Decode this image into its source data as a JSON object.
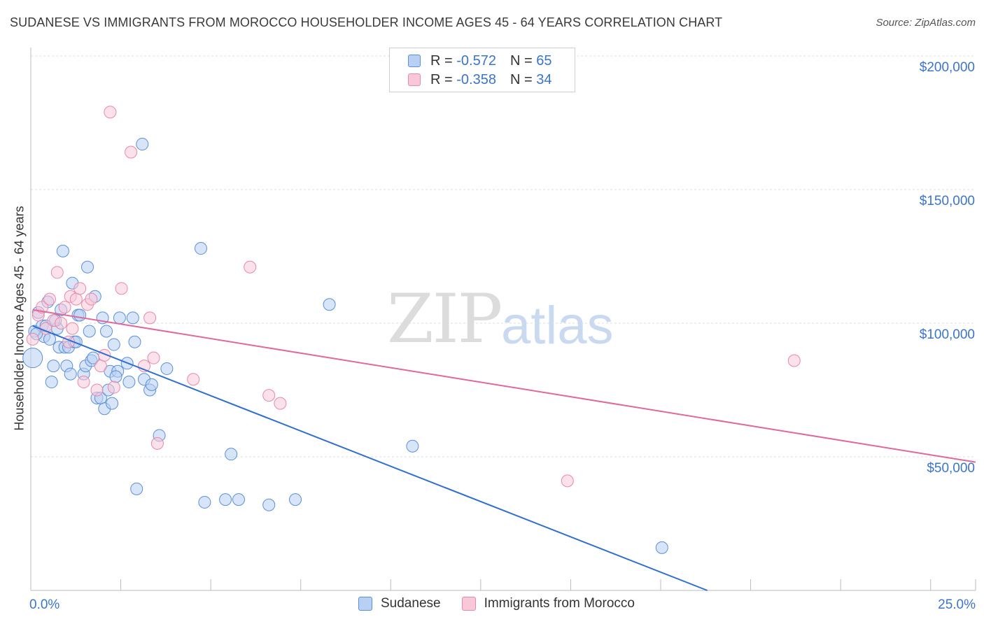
{
  "title": "SUDANESE VS IMMIGRANTS FROM MOROCCO HOUSEHOLDER INCOME AGES 45 - 64 YEARS CORRELATION CHART",
  "source": "Source: ZipAtlas.com",
  "watermark": {
    "zip": "ZIP",
    "atlas": "atlas"
  },
  "legend": {
    "r_label": "R =",
    "n_label": "N =",
    "series": [
      {
        "r": "-0.572",
        "n": "65"
      },
      {
        "r": "-0.358",
        "n": "34"
      }
    ]
  },
  "bottom_legend": [
    "Sudanese",
    "Immigrants from Morocco"
  ],
  "colors": {
    "blue_fill": "#b8d0f4",
    "blue_stroke": "#5b8fd6",
    "blue_line": "#2e6fd0",
    "pink_fill": "#f8c8d8",
    "pink_stroke": "#e889a8",
    "pink_line": "#e0689a",
    "axis_text": "#3b74c9",
    "grid": "#dddddd"
  },
  "chart_data": {
    "type": "scatter",
    "title": "SUDANESE VS IMMIGRANTS FROM MOROCCO HOUSEHOLDER INCOME AGES 45 - 64 YEARS CORRELATION CHART",
    "xlabel": "",
    "ylabel": "Householder Income Ages 45 - 64 years",
    "xlim": [
      0,
      25
    ],
    "ylim": [
      0,
      200000
    ],
    "x_tick_labels": [
      "0.0%",
      "25.0%"
    ],
    "y_ticks": [
      50000,
      100000,
      150000,
      200000
    ],
    "y_tick_labels": [
      "$50,000",
      "$100,000",
      "$150,000",
      "$200,000"
    ],
    "series": [
      {
        "name": "Sudanese",
        "r": -0.572,
        "n": 65,
        "trend": {
          "x": [
            0.05,
            17.9
          ],
          "y": [
            99000,
            0
          ]
        },
        "points": [
          [
            0.05,
            87000
          ],
          [
            0.1,
            97000
          ],
          [
            0.2,
            104000
          ],
          [
            0.3,
            99000
          ],
          [
            0.35,
            95000
          ],
          [
            0.45,
            108000
          ],
          [
            0.5,
            94000
          ],
          [
            0.55,
            78000
          ],
          [
            0.6,
            84000
          ],
          [
            0.7,
            98000
          ],
          [
            0.75,
            91000
          ],
          [
            0.8,
            105000
          ],
          [
            0.85,
            127000
          ],
          [
            0.9,
            91000
          ],
          [
            0.95,
            84000
          ],
          [
            1.0,
            91000
          ],
          [
            1.05,
            81000
          ],
          [
            1.1,
            115000
          ],
          [
            1.15,
            93000
          ],
          [
            1.25,
            103000
          ],
          [
            1.3,
            103000
          ],
          [
            1.4,
            81000
          ],
          [
            1.45,
            84000
          ],
          [
            1.5,
            121000
          ],
          [
            1.55,
            97000
          ],
          [
            1.6,
            86000
          ],
          [
            1.65,
            87000
          ],
          [
            1.7,
            110000
          ],
          [
            1.75,
            72000
          ],
          [
            1.85,
            72000
          ],
          [
            1.9,
            102000
          ],
          [
            1.95,
            68000
          ],
          [
            2.0,
            97000
          ],
          [
            2.05,
            75000
          ],
          [
            2.1,
            82000
          ],
          [
            2.15,
            70000
          ],
          [
            2.2,
            92000
          ],
          [
            2.3,
            82000
          ],
          [
            2.35,
            102000
          ],
          [
            2.55,
            85000
          ],
          [
            2.6,
            78000
          ],
          [
            2.7,
            102000
          ],
          [
            2.75,
            93000
          ],
          [
            2.8,
            38000
          ],
          [
            2.95,
            167000
          ],
          [
            3.0,
            79000
          ],
          [
            3.15,
            75000
          ],
          [
            3.2,
            77000
          ],
          [
            3.4,
            58000
          ],
          [
            3.6,
            83000
          ],
          [
            4.6,
            33000
          ],
          [
            4.5,
            128000
          ],
          [
            5.15,
            34000
          ],
          [
            5.3,
            51000
          ],
          [
            5.5,
            34000
          ],
          [
            6.3,
            32000
          ],
          [
            7.0,
            34000
          ],
          [
            7.9,
            107000
          ],
          [
            10.1,
            54000
          ],
          [
            0.15,
            96000
          ],
          [
            0.4,
            99000
          ],
          [
            1.2,
            93000
          ],
          [
            2.25,
            80000
          ],
          [
            16.7,
            16000
          ],
          [
            0.65,
            101000
          ]
        ]
      },
      {
        "name": "Immigrants from Morocco",
        "r": -0.358,
        "n": 34,
        "trend": {
          "x": [
            0.05,
            25.0
          ],
          "y": [
            105000,
            48000
          ]
        },
        "points": [
          [
            0.05,
            94000
          ],
          [
            0.2,
            103000
          ],
          [
            0.3,
            106000
          ],
          [
            0.4,
            98000
          ],
          [
            0.5,
            109000
          ],
          [
            0.6,
            101000
          ],
          [
            0.7,
            119000
          ],
          [
            0.8,
            100000
          ],
          [
            0.9,
            106000
          ],
          [
            1.0,
            93000
          ],
          [
            1.05,
            110000
          ],
          [
            1.1,
            98000
          ],
          [
            1.2,
            109000
          ],
          [
            1.3,
            113000
          ],
          [
            1.4,
            78000
          ],
          [
            1.5,
            107000
          ],
          [
            1.6,
            109000
          ],
          [
            1.75,
            75000
          ],
          [
            1.85,
            84000
          ],
          [
            1.95,
            88000
          ],
          [
            2.1,
            179000
          ],
          [
            2.2,
            76000
          ],
          [
            2.4,
            113000
          ],
          [
            2.65,
            164000
          ],
          [
            3.0,
            84000
          ],
          [
            3.15,
            102000
          ],
          [
            3.25,
            87000
          ],
          [
            3.35,
            55000
          ],
          [
            4.3,
            79000
          ],
          [
            5.8,
            121000
          ],
          [
            6.3,
            73000
          ],
          [
            6.6,
            70000
          ],
          [
            14.2,
            41000
          ],
          [
            20.2,
            86000
          ]
        ]
      }
    ]
  }
}
